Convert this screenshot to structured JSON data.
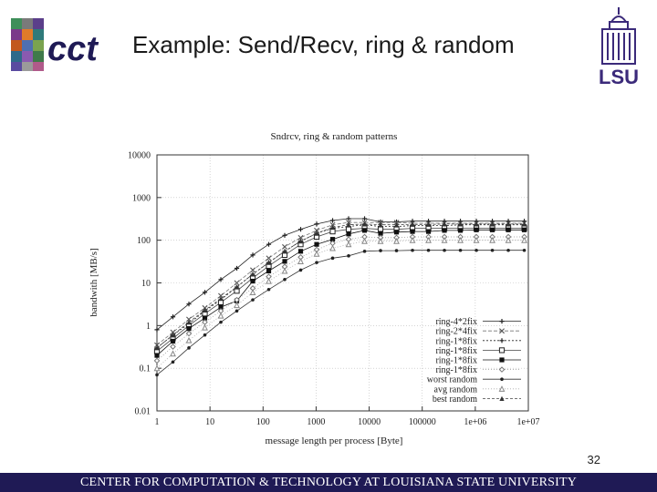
{
  "slide": {
    "title": "Example: Send/Recv, ring & random",
    "cct_logo_text": "cct",
    "lsu_logo_text": "LSU",
    "page_number": "32",
    "footer_text": "CENTER FOR COMPUTATION & TECHNOLOGY AT LOUISIANA STATE UNIVERSITY",
    "colors": {
      "footer": "#1f1a55",
      "lsu_purple": "#3b2a7a"
    }
  },
  "chart_data": {
    "type": "line",
    "title": "Sndrcv, ring & random patterns",
    "xlabel": "message length per process [Byte]",
    "ylabel": "bandwith [MB/s]",
    "xscale": "log",
    "yscale": "log",
    "xlim": [
      1,
      10000000
    ],
    "ylim": [
      0.01,
      10000
    ],
    "x_tick_labels": [
      "1",
      "10",
      "100",
      "1000",
      "10000",
      "100000",
      "1e+06",
      "1e+07"
    ],
    "y_tick_labels": [
      "0.01",
      "0.1",
      "1",
      "10",
      "100",
      "1000",
      "10000"
    ],
    "grid": true,
    "legend_position": "bottom-right",
    "x": [
      1,
      2,
      4,
      8,
      16,
      32,
      64,
      128,
      256,
      512,
      1024,
      2048,
      4096,
      8192,
      16384,
      32768,
      65536,
      131072,
      262144,
      524288,
      1048576,
      2097152,
      4194304,
      8388608
    ],
    "series": [
      {
        "name": "ring-4*2fix",
        "marker": "plus",
        "values": [
          0.8,
          1.6,
          3.2,
          6,
          12,
          22,
          45,
          80,
          130,
          180,
          240,
          290,
          320,
          320,
          270,
          270,
          280,
          280,
          280,
          280,
          280,
          280,
          280,
          280
        ]
      },
      {
        "name": "ring-2*4fix",
        "marker": "x",
        "values": [
          0.35,
          0.7,
          1.4,
          2.6,
          5,
          10,
          20,
          38,
          70,
          115,
          170,
          230,
          260,
          260,
          260,
          260,
          250,
          250,
          250,
          250,
          250,
          250,
          250,
          250
        ]
      },
      {
        "name": "ring-1*8fix",
        "marker": "plus",
        "values": [
          0.3,
          0.6,
          1.1,
          2.2,
          4,
          8,
          16,
          30,
          55,
          95,
          145,
          190,
          210,
          230,
          210,
          210,
          220,
          220,
          220,
          230,
          230,
          230,
          230,
          230
        ]
      },
      {
        "name": "ring-1*8fix",
        "marker": "square-open",
        "values": [
          0.25,
          0.5,
          1,
          1.9,
          3.5,
          6.5,
          13,
          25,
          45,
          80,
          120,
          160,
          180,
          190,
          180,
          180,
          190,
          190,
          190,
          190,
          190,
          190,
          190,
          190
        ]
      },
      {
        "name": "ring-1*8fix",
        "marker": "square-filled",
        "values": [
          0.2,
          0.43,
          0.85,
          1.5,
          2.7,
          3.8,
          11,
          19,
          32,
          55,
          80,
          105,
          140,
          170,
          145,
          155,
          160,
          160,
          170,
          170,
          175,
          175,
          175,
          175
        ]
      },
      {
        "name": "ring-1*8fix",
        "marker": "diamond-open",
        "values": [
          0.15,
          0.32,
          0.65,
          1.2,
          2.2,
          4,
          7.5,
          14,
          24,
          40,
          60,
          85,
          105,
          120,
          115,
          115,
          120,
          120,
          120,
          120,
          120,
          120,
          120,
          120
        ]
      },
      {
        "name": "worst random",
        "marker": "dot",
        "values": [
          0.07,
          0.14,
          0.3,
          0.6,
          1.2,
          2.2,
          4,
          7,
          12,
          20,
          30,
          38,
          43,
          55,
          57,
          57,
          58,
          58,
          58,
          58,
          58,
          58,
          58,
          58
        ]
      },
      {
        "name": "avg random",
        "marker": "triangle-open",
        "values": [
          0.1,
          0.22,
          0.45,
          0.9,
          1.7,
          3,
          6,
          11,
          19,
          32,
          48,
          65,
          80,
          95,
          95,
          95,
          100,
          100,
          100,
          100,
          100,
          100,
          100,
          100
        ]
      },
      {
        "name": "best random",
        "marker": "triangle-filled",
        "values": [
          0.3,
          0.6,
          1.2,
          2.3,
          4.3,
          8,
          16,
          30,
          55,
          95,
          145,
          200,
          230,
          240,
          230,
          230,
          235,
          235,
          240,
          240,
          240,
          240,
          240,
          240
        ]
      }
    ]
  }
}
